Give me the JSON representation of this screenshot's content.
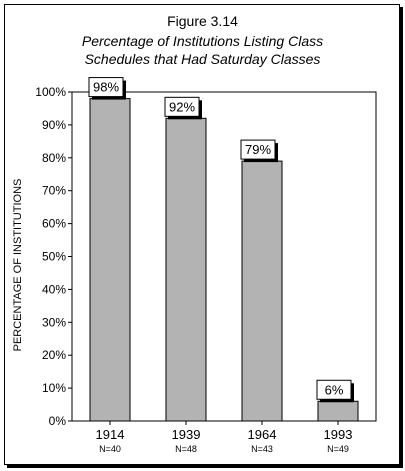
{
  "figure": {
    "number": "Figure 3.14",
    "title_line1": "Percentage of Institutions Listing Class",
    "title_line2": "Schedules that Had Saturday Classes"
  },
  "chart_data": {
    "type": "bar",
    "categories": [
      "1914",
      "1939",
      "1964",
      "1993"
    ],
    "sample_sizes": [
      "N=40",
      "N=48",
      "N=43",
      "N=49"
    ],
    "values": [
      98,
      92,
      79,
      6
    ],
    "value_labels": [
      "98%",
      "92%",
      "79%",
      "6%"
    ],
    "title": "Percentage of Institutions Listing Class Schedules that Had Saturday Classes",
    "xlabel": "",
    "ylabel": "PERCENTAGE OF INSTITUTIONS",
    "ylim": [
      0,
      100
    ],
    "yticks": [
      0,
      10,
      20,
      30,
      40,
      50,
      60,
      70,
      80,
      90,
      100
    ],
    "ytick_labels": [
      "0%",
      "10%",
      "20%",
      "30%",
      "40%",
      "50%",
      "60%",
      "70%",
      "80%",
      "90%",
      "100%"
    ],
    "grid": false,
    "legend": "none",
    "bar_color": "#b3b3b3",
    "bar_edge_color": "#000000"
  }
}
